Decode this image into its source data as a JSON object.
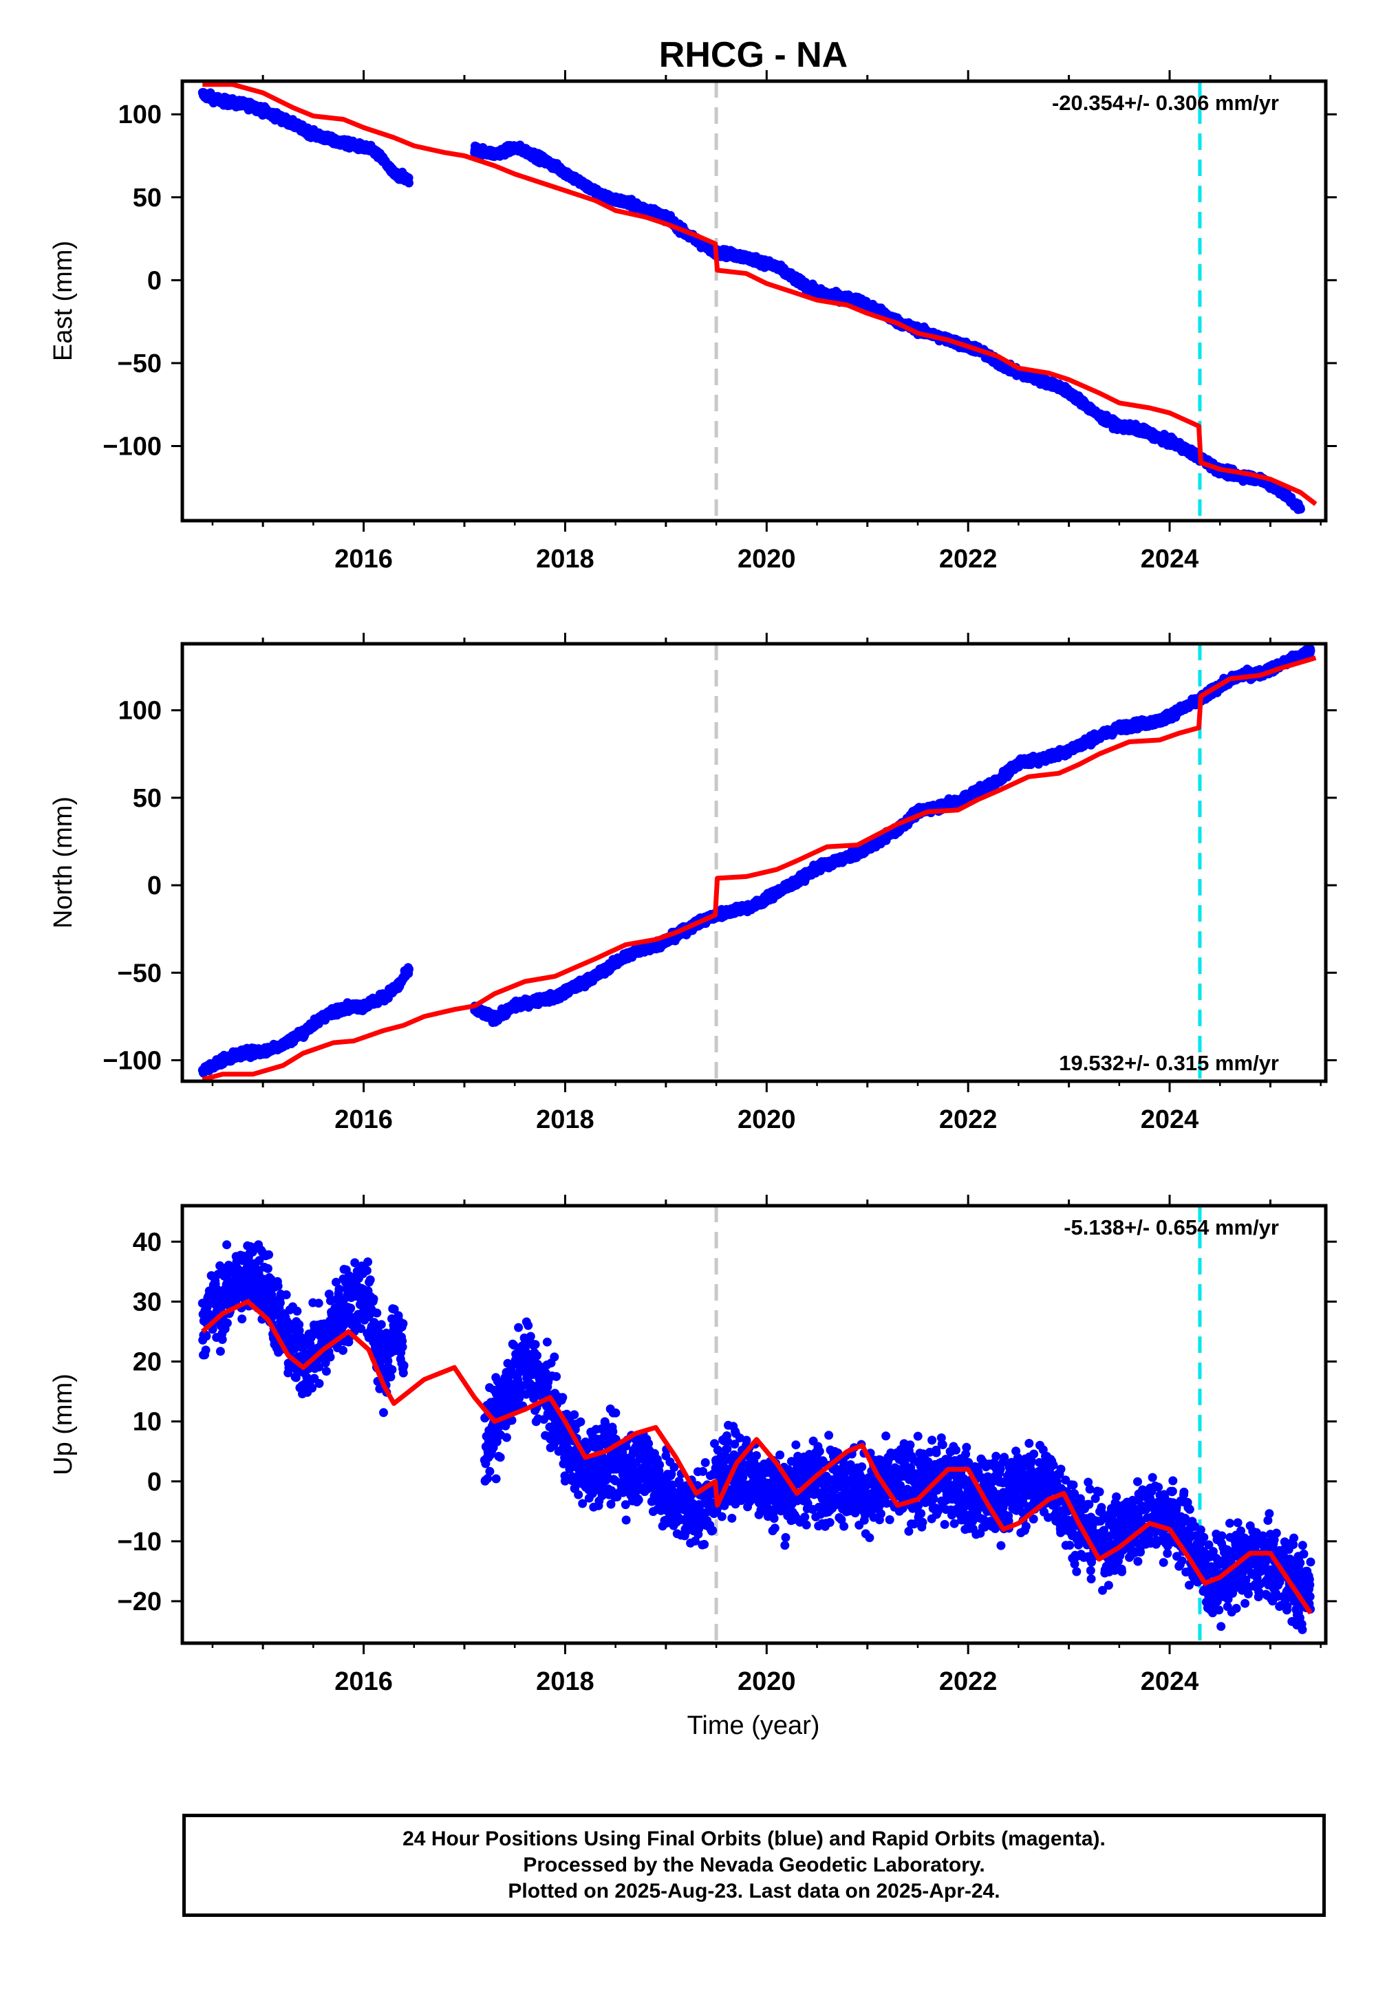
{
  "title": "RHCG - NA",
  "colors": {
    "final": "#0000ff",
    "model": "#ff0000",
    "offset_gray": "#c8c8c8",
    "offset_cyan": "#00e5ee"
  },
  "xlabel": "Time (year)",
  "footer": [
    "24 Hour Positions Using Final Orbits (blue) and Rapid Orbits (magenta).",
    "Processed by the Nevada Geodetic Laboratory.",
    "Plotted on 2025-Aug-23. Last data on 2025-Apr-24."
  ],
  "chart_data": [
    {
      "type": "scatter",
      "name": "east",
      "ylabel": "East (mm)",
      "rate_text": "-20.354+/- 0.306 mm/yr",
      "rate_position": "top-right",
      "xlim": [
        2014.2,
        2025.55
      ],
      "ylim": [
        -145,
        120
      ],
      "xticks": [
        2016,
        2018,
        2020,
        2022,
        2024
      ],
      "yticks": [
        -100,
        -50,
        0,
        50,
        100
      ],
      "ytick_labels": [
        "−100",
        "−50",
        "0",
        "50",
        "100"
      ],
      "offsets": [
        {
          "x": 2019.5,
          "style": "gray-dashed"
        },
        {
          "x": 2024.3,
          "style": "cyan-dashed"
        }
      ],
      "observed": [
        [
          2014.4,
          112
        ],
        [
          2014.6,
          108
        ],
        [
          2014.9,
          105
        ],
        [
          2015.2,
          97
        ],
        [
          2015.5,
          88
        ],
        [
          2015.7,
          84
        ],
        [
          2016.0,
          80
        ],
        [
          2016.1,
          78
        ],
        [
          2016.2,
          72
        ],
        [
          2016.3,
          64
        ],
        [
          2016.4,
          62
        ],
        [
          2016.45,
          60
        ],
        [
          2017.1,
          79
        ],
        [
          2017.3,
          76
        ],
        [
          2017.5,
          80
        ],
        [
          2017.6,
          78
        ],
        [
          2017.8,
          72
        ],
        [
          2018.0,
          65
        ],
        [
          2018.2,
          57
        ],
        [
          2018.4,
          50
        ],
        [
          2018.6,
          47
        ],
        [
          2018.8,
          43
        ],
        [
          2019.0,
          38
        ],
        [
          2019.2,
          28
        ],
        [
          2019.4,
          20
        ],
        [
          2019.5,
          17
        ],
        [
          2019.7,
          15
        ],
        [
          2019.9,
          12
        ],
        [
          2020.1,
          8
        ],
        [
          2020.3,
          0
        ],
        [
          2020.5,
          -7
        ],
        [
          2020.7,
          -10
        ],
        [
          2020.9,
          -12
        ],
        [
          2021.1,
          -18
        ],
        [
          2021.3,
          -25
        ],
        [
          2021.5,
          -30
        ],
        [
          2021.7,
          -34
        ],
        [
          2021.9,
          -38
        ],
        [
          2022.1,
          -42
        ],
        [
          2022.3,
          -50
        ],
        [
          2022.5,
          -56
        ],
        [
          2022.7,
          -60
        ],
        [
          2022.9,
          -64
        ],
        [
          2023.1,
          -72
        ],
        [
          2023.3,
          -82
        ],
        [
          2023.5,
          -88
        ],
        [
          2023.7,
          -90
        ],
        [
          2023.9,
          -95
        ],
        [
          2024.1,
          -100
        ],
        [
          2024.3,
          -107
        ],
        [
          2024.5,
          -115
        ],
        [
          2024.7,
          -118
        ],
        [
          2024.9,
          -120
        ],
        [
          2025.1,
          -127
        ],
        [
          2025.3,
          -138
        ]
      ],
      "model": [
        [
          2014.4,
          118
        ],
        [
          2014.7,
          118
        ],
        [
          2015.0,
          113
        ],
        [
          2015.3,
          104
        ],
        [
          2015.5,
          99
        ],
        [
          2015.8,
          97
        ],
        [
          2016.0,
          92
        ],
        [
          2016.3,
          86
        ],
        [
          2016.5,
          81
        ],
        [
          2016.8,
          77
        ],
        [
          2017.0,
          75
        ],
        [
          2017.3,
          69
        ],
        [
          2017.5,
          64
        ],
        [
          2017.8,
          58
        ],
        [
          2018.0,
          54
        ],
        [
          2018.3,
          48
        ],
        [
          2018.5,
          42
        ],
        [
          2018.8,
          38
        ],
        [
          2019.0,
          34
        ],
        [
          2019.3,
          27
        ],
        [
          2019.49,
          22
        ],
        [
          2019.51,
          6
        ],
        [
          2019.8,
          4
        ],
        [
          2020.0,
          -2
        ],
        [
          2020.3,
          -8
        ],
        [
          2020.5,
          -12
        ],
        [
          2020.8,
          -15
        ],
        [
          2021.0,
          -20
        ],
        [
          2021.3,
          -26
        ],
        [
          2021.5,
          -32
        ],
        [
          2021.8,
          -36
        ],
        [
          2022.0,
          -40
        ],
        [
          2022.3,
          -46
        ],
        [
          2022.5,
          -53
        ],
        [
          2022.8,
          -56
        ],
        [
          2023.0,
          -60
        ],
        [
          2023.3,
          -68
        ],
        [
          2023.5,
          -74
        ],
        [
          2023.8,
          -77
        ],
        [
          2024.0,
          -80
        ],
        [
          2024.29,
          -88
        ],
        [
          2024.31,
          -110
        ],
        [
          2024.5,
          -114
        ],
        [
          2024.8,
          -117
        ],
        [
          2025.0,
          -120
        ],
        [
          2025.3,
          -128
        ],
        [
          2025.45,
          -135
        ]
      ]
    },
    {
      "type": "scatter",
      "name": "north",
      "ylabel": "North (mm)",
      "rate_text": "19.532+/- 0.315 mm/yr",
      "rate_position": "bottom-right",
      "xlim": [
        2014.2,
        2025.55
      ],
      "ylim": [
        -112,
        138
      ],
      "xticks": [
        2016,
        2018,
        2020,
        2022,
        2024
      ],
      "yticks": [
        -100,
        -50,
        0,
        50,
        100
      ],
      "ytick_labels": [
        "−100",
        "−50",
        "0",
        "50",
        "100"
      ],
      "offsets": [
        {
          "x": 2019.5,
          "style": "gray-dashed"
        },
        {
          "x": 2024.3,
          "style": "cyan-dashed"
        }
      ],
      "observed": [
        [
          2014.4,
          -106
        ],
        [
          2014.6,
          -100
        ],
        [
          2014.8,
          -96
        ],
        [
          2015.0,
          -95
        ],
        [
          2015.2,
          -91
        ],
        [
          2015.4,
          -84
        ],
        [
          2015.6,
          -75
        ],
        [
          2015.8,
          -70
        ],
        [
          2016.0,
          -69
        ],
        [
          2016.2,
          -64
        ],
        [
          2016.35,
          -57
        ],
        [
          2016.45,
          -48
        ],
        [
          2017.1,
          -71
        ],
        [
          2017.3,
          -76
        ],
        [
          2017.5,
          -69
        ],
        [
          2017.7,
          -66
        ],
        [
          2017.9,
          -64
        ],
        [
          2018.1,
          -58
        ],
        [
          2018.3,
          -52
        ],
        [
          2018.5,
          -44
        ],
        [
          2018.7,
          -38
        ],
        [
          2018.9,
          -34
        ],
        [
          2019.1,
          -29
        ],
        [
          2019.3,
          -22
        ],
        [
          2019.5,
          -17
        ],
        [
          2019.7,
          -14
        ],
        [
          2019.9,
          -11
        ],
        [
          2020.1,
          -4
        ],
        [
          2020.3,
          2
        ],
        [
          2020.5,
          10
        ],
        [
          2020.7,
          14
        ],
        [
          2020.9,
          18
        ],
        [
          2021.1,
          25
        ],
        [
          2021.3,
          32
        ],
        [
          2021.5,
          42
        ],
        [
          2021.7,
          45
        ],
        [
          2021.9,
          48
        ],
        [
          2022.1,
          54
        ],
        [
          2022.3,
          60
        ],
        [
          2022.5,
          70
        ],
        [
          2022.7,
          72
        ],
        [
          2022.9,
          75
        ],
        [
          2023.1,
          80
        ],
        [
          2023.3,
          85
        ],
        [
          2023.5,
          90
        ],
        [
          2023.7,
          92
        ],
        [
          2023.9,
          94
        ],
        [
          2024.1,
          100
        ],
        [
          2024.3,
          106
        ],
        [
          2024.5,
          114
        ],
        [
          2024.7,
          120
        ],
        [
          2024.9,
          121
        ],
        [
          2025.1,
          126
        ],
        [
          2025.4,
          134
        ]
      ],
      "model": [
        [
          2014.4,
          -111
        ],
        [
          2014.6,
          -108
        ],
        [
          2014.9,
          -108
        ],
        [
          2015.2,
          -103
        ],
        [
          2015.4,
          -96
        ],
        [
          2015.7,
          -90
        ],
        [
          2015.9,
          -89
        ],
        [
          2016.2,
          -83
        ],
        [
          2016.4,
          -80
        ],
        [
          2016.6,
          -75
        ],
        [
          2016.9,
          -71
        ],
        [
          2017.1,
          -69
        ],
        [
          2017.3,
          -62
        ],
        [
          2017.6,
          -55
        ],
        [
          2017.9,
          -52
        ],
        [
          2018.1,
          -47
        ],
        [
          2018.3,
          -42
        ],
        [
          2018.6,
          -34
        ],
        [
          2018.9,
          -31
        ],
        [
          2019.1,
          -27
        ],
        [
          2019.49,
          -17
        ],
        [
          2019.51,
          4
        ],
        [
          2019.8,
          5
        ],
        [
          2020.1,
          9
        ],
        [
          2020.3,
          14
        ],
        [
          2020.6,
          22
        ],
        [
          2020.9,
          23
        ],
        [
          2021.1,
          29
        ],
        [
          2021.3,
          35
        ],
        [
          2021.6,
          42
        ],
        [
          2021.9,
          43
        ],
        [
          2022.1,
          49
        ],
        [
          2022.3,
          54
        ],
        [
          2022.6,
          62
        ],
        [
          2022.9,
          64
        ],
        [
          2023.1,
          69
        ],
        [
          2023.3,
          75
        ],
        [
          2023.6,
          82
        ],
        [
          2023.9,
          83
        ],
        [
          2024.1,
          87
        ],
        [
          2024.29,
          90
        ],
        [
          2024.31,
          108
        ],
        [
          2024.6,
          118
        ],
        [
          2024.9,
          120
        ],
        [
          2025.1,
          124
        ],
        [
          2025.45,
          130
        ]
      ]
    },
    {
      "type": "scatter",
      "name": "up",
      "ylabel": "Up (mm)",
      "rate_text": "-5.138+/- 0.654 mm/yr",
      "rate_position": "top-right",
      "xlim": [
        2014.2,
        2025.55
      ],
      "ylim": [
        -27,
        46
      ],
      "xticks": [
        2016,
        2018,
        2020,
        2022,
        2024
      ],
      "yticks": [
        -20,
        -10,
        0,
        10,
        20,
        30,
        40
      ],
      "ytick_labels": [
        "−20",
        "−10",
        "0",
        "10",
        "20",
        "30",
        "40"
      ],
      "offsets": [
        {
          "x": 2019.5,
          "style": "gray-dashed"
        },
        {
          "x": 2024.3,
          "style": "cyan-dashed"
        }
      ],
      "observed_scatter_mm": 4.5,
      "observed": [
        [
          2014.4,
          27
        ],
        [
          2014.6,
          30
        ],
        [
          2014.8,
          34
        ],
        [
          2015.0,
          34
        ],
        [
          2015.2,
          25
        ],
        [
          2015.4,
          20
        ],
        [
          2015.6,
          23
        ],
        [
          2015.8,
          29
        ],
        [
          2016.0,
          32
        ],
        [
          2016.1,
          26
        ],
        [
          2016.2,
          18
        ],
        [
          2016.3,
          25
        ],
        [
          2016.4,
          21
        ],
        [
          2017.2,
          6
        ],
        [
          2017.4,
          13
        ],
        [
          2017.6,
          20
        ],
        [
          2017.8,
          15
        ],
        [
          2018.0,
          7
        ],
        [
          2018.2,
          2
        ],
        [
          2018.4,
          4
        ],
        [
          2018.6,
          2
        ],
        [
          2018.8,
          3
        ],
        [
          2019.0,
          -2
        ],
        [
          2019.2,
          -5
        ],
        [
          2019.4,
          -4
        ],
        [
          2019.6,
          2
        ],
        [
          2019.8,
          2
        ],
        [
          2020.0,
          -1
        ],
        [
          2020.2,
          -2
        ],
        [
          2020.4,
          0
        ],
        [
          2020.6,
          0
        ],
        [
          2020.8,
          0
        ],
        [
          2021.0,
          -2
        ],
        [
          2021.2,
          -1
        ],
        [
          2021.4,
          0
        ],
        [
          2021.6,
          -1
        ],
        [
          2021.8,
          1
        ],
        [
          2022.0,
          -2
        ],
        [
          2022.2,
          -3
        ],
        [
          2022.4,
          -2
        ],
        [
          2022.6,
          -1
        ],
        [
          2022.8,
          0
        ],
        [
          2023.0,
          -5
        ],
        [
          2023.2,
          -9
        ],
        [
          2023.4,
          -10
        ],
        [
          2023.6,
          -8
        ],
        [
          2023.8,
          -5
        ],
        [
          2024.0,
          -6
        ],
        [
          2024.2,
          -10
        ],
        [
          2024.4,
          -17
        ],
        [
          2024.6,
          -15
        ],
        [
          2024.8,
          -13
        ],
        [
          2025.0,
          -14
        ],
        [
          2025.2,
          -16
        ],
        [
          2025.4,
          -19
        ]
      ],
      "model": [
        [
          2014.4,
          25
        ],
        [
          2014.6,
          28
        ],
        [
          2014.85,
          30
        ],
        [
          2015.05,
          27
        ],
        [
          2015.25,
          21
        ],
        [
          2015.4,
          19
        ],
        [
          2015.6,
          22
        ],
        [
          2015.85,
          25
        ],
        [
          2016.05,
          22
        ],
        [
          2016.2,
          16
        ],
        [
          2016.3,
          13
        ],
        [
          2016.45,
          15
        ],
        [
          2016.6,
          17
        ],
        [
          2016.9,
          19
        ],
        [
          2017.1,
          14
        ],
        [
          2017.3,
          10
        ],
        [
          2017.6,
          12
        ],
        [
          2017.85,
          14
        ],
        [
          2018.0,
          10
        ],
        [
          2018.2,
          4
        ],
        [
          2018.4,
          5
        ],
        [
          2018.7,
          8
        ],
        [
          2018.9,
          9
        ],
        [
          2019.1,
          4
        ],
        [
          2019.3,
          -2
        ],
        [
          2019.49,
          0
        ],
        [
          2019.51,
          -4
        ],
        [
          2019.7,
          3
        ],
        [
          2019.9,
          7
        ],
        [
          2020.1,
          3
        ],
        [
          2020.3,
          -2
        ],
        [
          2020.5,
          1
        ],
        [
          2020.8,
          5
        ],
        [
          2020.95,
          6
        ],
        [
          2021.1,
          1
        ],
        [
          2021.3,
          -4
        ],
        [
          2021.5,
          -3
        ],
        [
          2021.8,
          2
        ],
        [
          2022.0,
          2
        ],
        [
          2022.2,
          -4
        ],
        [
          2022.35,
          -8
        ],
        [
          2022.5,
          -7
        ],
        [
          2022.8,
          -3
        ],
        [
          2022.95,
          -2
        ],
        [
          2023.1,
          -7
        ],
        [
          2023.3,
          -13
        ],
        [
          2023.5,
          -11
        ],
        [
          2023.8,
          -7
        ],
        [
          2024.0,
          -8
        ],
        [
          2024.2,
          -13
        ],
        [
          2024.35,
          -17
        ],
        [
          2024.5,
          -16
        ],
        [
          2024.8,
          -12
        ],
        [
          2025.0,
          -12
        ],
        [
          2025.2,
          -17
        ],
        [
          2025.4,
          -22
        ]
      ]
    }
  ]
}
